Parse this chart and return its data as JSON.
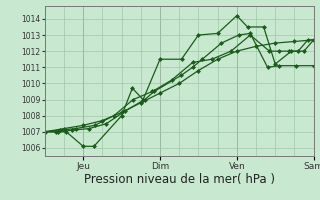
{
  "bg_color": "#c8e8d0",
  "grid_color": "#a0c8a8",
  "line_color": "#1a5c1a",
  "marker_color": "#1a5c1a",
  "xlabel": "Pression niveau de la mer( hPa )",
  "xlabel_fontsize": 8.5,
  "ylim": [
    1005.5,
    1014.8
  ],
  "yticks": [
    1006,
    1007,
    1008,
    1009,
    1010,
    1011,
    1012,
    1013,
    1014
  ],
  "xlim": [
    0,
    7.0
  ],
  "s1_x": [
    0,
    0.28,
    0.56,
    1.0,
    1.28,
    2.0,
    2.28,
    2.56,
    3.0,
    3.56,
    4.0,
    4.5,
    5.0,
    5.28,
    5.7,
    6.0,
    6.42,
    6.75,
    7.0
  ],
  "s1_y": [
    1007.0,
    1007.0,
    1007.0,
    1006.1,
    1006.1,
    1008.0,
    1009.7,
    1009.0,
    1011.5,
    1011.5,
    1013.0,
    1013.1,
    1014.2,
    1013.5,
    1013.5,
    1011.2,
    1012.0,
    1012.0,
    1012.7
  ],
  "s2_x": [
    0,
    0.35,
    0.7,
    1.15,
    1.6,
    2.1,
    2.6,
    2.85,
    3.55,
    3.85,
    4.1,
    4.6,
    5.05,
    5.35,
    5.8,
    6.1,
    6.55,
    7.0
  ],
  "s2_y": [
    1007.0,
    1007.0,
    1007.1,
    1007.2,
    1007.5,
    1008.3,
    1009.0,
    1009.5,
    1010.5,
    1011.0,
    1011.5,
    1012.5,
    1013.0,
    1013.1,
    1011.0,
    1011.1,
    1011.1,
    1011.1
  ],
  "s3_x": [
    0,
    0.4,
    0.8,
    1.3,
    1.8,
    2.3,
    2.8,
    3.3,
    3.85,
    4.35,
    4.85,
    5.35,
    5.85,
    6.1,
    6.35,
    6.6,
    6.85,
    7.0
  ],
  "s3_y": [
    1007.0,
    1007.1,
    1007.2,
    1007.4,
    1008.0,
    1009.0,
    1009.5,
    1010.2,
    1011.3,
    1011.5,
    1012.0,
    1013.0,
    1012.0,
    1012.0,
    1012.0,
    1012.0,
    1012.7,
    1012.7
  ],
  "s4_x": [
    0,
    0.5,
    1.0,
    1.5,
    2.0,
    2.5,
    3.0,
    3.5,
    4.0,
    4.5,
    5.0,
    5.5,
    6.0,
    6.5,
    7.0
  ],
  "s4_y": [
    1007.0,
    1007.2,
    1007.4,
    1007.7,
    1008.2,
    1008.8,
    1009.4,
    1010.0,
    1010.8,
    1011.5,
    1012.0,
    1012.3,
    1012.5,
    1012.6,
    1012.7
  ],
  "day_positions": [
    1.0,
    3.0,
    5.0,
    7.0
  ],
  "day_labels": [
    "Jeu",
    "Dim",
    "Ven",
    "Sam"
  ]
}
